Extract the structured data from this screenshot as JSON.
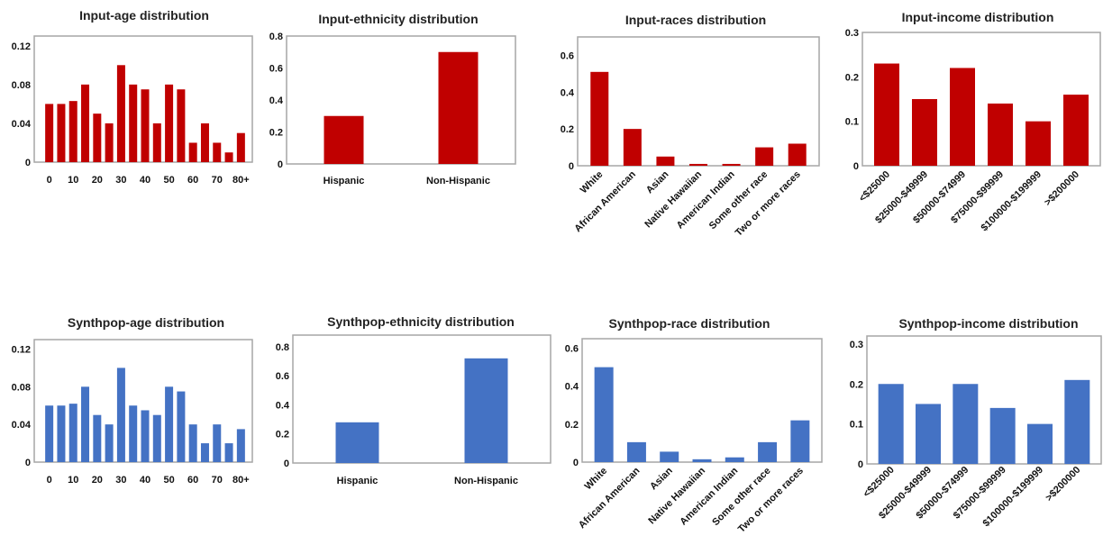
{
  "colors": {
    "input": "#c00000",
    "synthpop": "#4472c4"
  },
  "chart_data": [
    {
      "type": "bar",
      "title": "Input-age distribution",
      "categories": [
        "0",
        "5",
        "10",
        "15",
        "20",
        "25",
        "30",
        "35",
        "40",
        "45",
        "50",
        "55",
        "60",
        "65",
        "70",
        "75",
        "80+"
      ],
      "x_tick_labels": [
        "0",
        "10",
        "20",
        "30",
        "40",
        "50",
        "60",
        "70",
        "80+"
      ],
      "values": [
        0.06,
        0.06,
        0.063,
        0.08,
        0.05,
        0.04,
        0.1,
        0.08,
        0.075,
        0.04,
        0.08,
        0.075,
        0.02,
        0.04,
        0.02,
        0.01,
        0.03
      ],
      "y_ticks": [
        0,
        0.04,
        0.08,
        0.12
      ],
      "ylim": [
        0,
        0.13
      ],
      "color": "input",
      "grid": false
    },
    {
      "type": "bar",
      "title": "Input-ethnicity distribution",
      "categories": [
        "Hispanic",
        "Non-Hispanic"
      ],
      "values": [
        0.3,
        0.7
      ],
      "y_ticks": [
        0,
        0.2,
        0.4,
        0.6,
        0.8
      ],
      "ylim": [
        0,
        0.8
      ],
      "color": "input",
      "grid": false
    },
    {
      "type": "bar",
      "title": "Input-races distribution",
      "categories": [
        "White",
        "African American",
        "Asian",
        "Native Hawaiian",
        "American Indian",
        "Some other race",
        "Two or more races"
      ],
      "values": [
        0.51,
        0.2,
        0.05,
        0.01,
        0.01,
        0.1,
        0.12
      ],
      "y_ticks": [
        0,
        0.2,
        0.4,
        0.6
      ],
      "ylim": [
        0,
        0.7
      ],
      "color": "input",
      "grid": false
    },
    {
      "type": "bar",
      "title": "Input-income distribution",
      "categories": [
        "<$25000",
        "$25000-$49999",
        "$50000-$74999",
        "$75000-$99999",
        "$100000-$199999",
        ">$200000"
      ],
      "values": [
        0.23,
        0.15,
        0.22,
        0.14,
        0.1,
        0.16
      ],
      "y_ticks": [
        0,
        0.1,
        0.2,
        0.3
      ],
      "ylim": [
        0,
        0.3
      ],
      "color": "input",
      "grid": false
    },
    {
      "type": "bar",
      "title": "Synthpop-age distribution",
      "categories": [
        "0",
        "5",
        "10",
        "15",
        "20",
        "25",
        "30",
        "35",
        "40",
        "45",
        "50",
        "55",
        "60",
        "65",
        "70",
        "75",
        "80+"
      ],
      "x_tick_labels": [
        "0",
        "10",
        "20",
        "30",
        "40",
        "50",
        "60",
        "70",
        "80+"
      ],
      "values": [
        0.06,
        0.06,
        0.062,
        0.08,
        0.05,
        0.04,
        0.1,
        0.06,
        0.055,
        0.05,
        0.08,
        0.075,
        0.04,
        0.02,
        0.04,
        0.02,
        0.035
      ],
      "y_ticks": [
        0,
        0.04,
        0.08,
        0.12
      ],
      "ylim": [
        0,
        0.13
      ],
      "color": "synthpop",
      "grid": false
    },
    {
      "type": "bar",
      "title": "Synthpop-ethnicity distribution",
      "categories": [
        "Hispanic",
        "Non-Hispanic"
      ],
      "values": [
        0.28,
        0.72
      ],
      "y_ticks": [
        0,
        0.2,
        0.4,
        0.6,
        0.8
      ],
      "ylim": [
        0,
        0.88
      ],
      "color": "synthpop",
      "grid": false
    },
    {
      "type": "bar",
      "title": "Synthpop-race distribution",
      "categories": [
        "White",
        "African American",
        "Asian",
        "Native Hawaiian",
        "American Indian",
        "Some other race",
        "Two or more races"
      ],
      "values": [
        0.5,
        0.105,
        0.055,
        0.015,
        0.025,
        0.105,
        0.22
      ],
      "y_ticks": [
        0,
        0.2,
        0.4,
        0.6
      ],
      "ylim": [
        0,
        0.65
      ],
      "color": "synthpop",
      "grid": false
    },
    {
      "type": "bar",
      "title": "Synthpop-income distribution",
      "categories": [
        "<$25000",
        "$25000-$49999",
        "$50000-$74999",
        "$75000-$99999",
        "$100000-$199999",
        ">$200000"
      ],
      "values": [
        0.2,
        0.15,
        0.2,
        0.14,
        0.1,
        0.21
      ],
      "y_ticks": [
        0,
        0.1,
        0.2,
        0.3
      ],
      "ylim": [
        0,
        0.32
      ],
      "color": "synthpop",
      "grid": false
    }
  ]
}
